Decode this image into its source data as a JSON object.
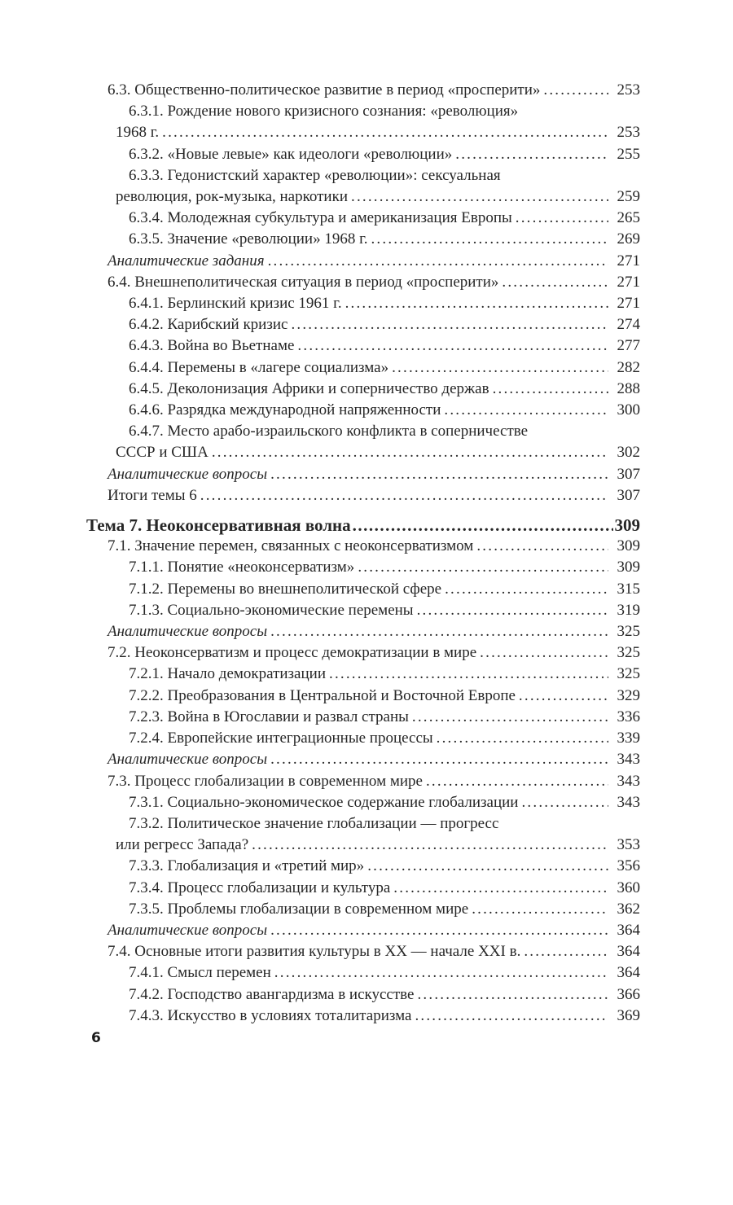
{
  "page": {
    "background_color": "#ffffff",
    "text_color": "#262626",
    "footer_page_number": "6"
  },
  "toc": {
    "entries": [
      {
        "level": 2,
        "style": "normal",
        "lines": [
          "6.3. Общественно-политическое развитие в период «просперити»"
        ],
        "page": "253"
      },
      {
        "level": 3,
        "style": "normal",
        "lines": [
          "6.3.1. Рождение нового кризисного сознания: «революция»",
          "1968 г."
        ],
        "page": "253"
      },
      {
        "level": 3,
        "style": "normal",
        "lines": [
          "6.3.2. «Новые левые» как идеологи «революции»"
        ],
        "page": "255"
      },
      {
        "level": 3,
        "style": "normal",
        "lines": [
          "6.3.3. Гедонистский характер «революции»: сексуальная",
          "революция, рок-музыка, наркотики"
        ],
        "page": "259"
      },
      {
        "level": 3,
        "style": "normal",
        "lines": [
          "6.3.4. Молодежная субкультура и американизация Европы"
        ],
        "page": "265"
      },
      {
        "level": 3,
        "style": "normal",
        "lines": [
          "6.3.5. Значение «революции» 1968 г."
        ],
        "page": "269"
      },
      {
        "level": 2,
        "style": "italic",
        "lines": [
          "Аналитические задания"
        ],
        "page": "271"
      },
      {
        "level": 2,
        "style": "normal",
        "lines": [
          "6.4. Внешнеполитическая ситуация в период «просперити»"
        ],
        "page": "271"
      },
      {
        "level": 3,
        "style": "normal",
        "lines": [
          "6.4.1. Берлинский кризис 1961 г."
        ],
        "page": "271"
      },
      {
        "level": 3,
        "style": "normal",
        "lines": [
          "6.4.2. Карибский кризис"
        ],
        "page": "274"
      },
      {
        "level": 3,
        "style": "normal",
        "lines": [
          "6.4.3. Война во Вьетнаме"
        ],
        "page": "277"
      },
      {
        "level": 3,
        "style": "normal",
        "lines": [
          "6.4.4. Перемены в «лагере социализма»"
        ],
        "page": "282"
      },
      {
        "level": 3,
        "style": "normal",
        "lines": [
          "6.4.5. Деколонизация Африки и соперничество держав"
        ],
        "page": "288"
      },
      {
        "level": 3,
        "style": "normal",
        "lines": [
          "6.4.6. Разрядка международной напряженности"
        ],
        "page": "300"
      },
      {
        "level": 3,
        "style": "normal",
        "lines": [
          "6.4.7. Место арабо-израильского конфликта в соперничестве",
          "СССР и США"
        ],
        "page": "302"
      },
      {
        "level": 2,
        "style": "italic",
        "lines": [
          "Аналитические вопросы"
        ],
        "page": "307"
      },
      {
        "level": 2,
        "style": "normal",
        "lines": [
          "Итоги темы 6"
        ],
        "page": "307"
      },
      {
        "level": 1,
        "style": "heading",
        "lines": [
          "Тема 7. Неоконсервативная волна"
        ],
        "page": "309"
      },
      {
        "level": 2,
        "style": "normal",
        "lines": [
          "7.1. Значение перемен, связанных с неоконсерватизмом"
        ],
        "page": "309"
      },
      {
        "level": 3,
        "style": "normal",
        "lines": [
          "7.1.1. Понятие «неоконсерватизм»"
        ],
        "page": "309"
      },
      {
        "level": 3,
        "style": "normal",
        "lines": [
          "7.1.2. Перемены во внешнеполитической сфере"
        ],
        "page": "315"
      },
      {
        "level": 3,
        "style": "normal",
        "lines": [
          "7.1.3. Социально-экономические перемены"
        ],
        "page": "319"
      },
      {
        "level": 2,
        "style": "italic",
        "lines": [
          "Аналитические вопросы"
        ],
        "page": "325"
      },
      {
        "level": 2,
        "style": "normal",
        "lines": [
          "7.2. Неоконсерватизм и процесс демократизации в мире"
        ],
        "page": "325"
      },
      {
        "level": 3,
        "style": "normal",
        "lines": [
          "7.2.1. Начало демократизации"
        ],
        "page": "325"
      },
      {
        "level": 3,
        "style": "normal",
        "lines": [
          "7.2.2. Преобразования в Центральной и Восточной Европе"
        ],
        "page": "329"
      },
      {
        "level": 3,
        "style": "normal",
        "lines": [
          "7.2.3. Война в Югославии и развал страны"
        ],
        "page": "336"
      },
      {
        "level": 3,
        "style": "normal",
        "lines": [
          "7.2.4. Европейские интеграционные процессы"
        ],
        "page": "339"
      },
      {
        "level": 2,
        "style": "italic",
        "lines": [
          "Аналитические вопросы"
        ],
        "page": "343"
      },
      {
        "level": 2,
        "style": "normal",
        "lines": [
          "7.3. Процесс глобализации в современном мире"
        ],
        "page": "343"
      },
      {
        "level": 3,
        "style": "normal",
        "lines": [
          "7.3.1. Социально-экономическое содержание глобализации"
        ],
        "page": "343"
      },
      {
        "level": 3,
        "style": "normal",
        "lines": [
          "7.3.2. Политическое значение глобализации — прогресс",
          "или регресс Запада?"
        ],
        "page": "353"
      },
      {
        "level": 3,
        "style": "normal",
        "lines": [
          "7.3.3. Глобализация и «третий мир»"
        ],
        "page": "356"
      },
      {
        "level": 3,
        "style": "normal",
        "lines": [
          "7.3.4. Процесс глобализации и культура"
        ],
        "page": "360"
      },
      {
        "level": 3,
        "style": "normal",
        "lines": [
          "7.3.5. Проблемы глобализации в современном мире"
        ],
        "page": "362"
      },
      {
        "level": 2,
        "style": "italic",
        "lines": [
          "Аналитические вопросы"
        ],
        "page": "364"
      },
      {
        "level": 2,
        "style": "normal",
        "lines": [
          "7.4. Основные итоги развития культуры в XX — начале XXI в."
        ],
        "page": "364"
      },
      {
        "level": 3,
        "style": "normal",
        "lines": [
          "7.4.1. Смысл перемен"
        ],
        "page": "364"
      },
      {
        "level": 3,
        "style": "normal",
        "lines": [
          "7.4.2. Господство авангардизма в искусстве"
        ],
        "page": "366"
      },
      {
        "level": 3,
        "style": "normal",
        "lines": [
          "7.4.3. Искусство в условиях тоталитаризма"
        ],
        "page": "369"
      }
    ]
  }
}
